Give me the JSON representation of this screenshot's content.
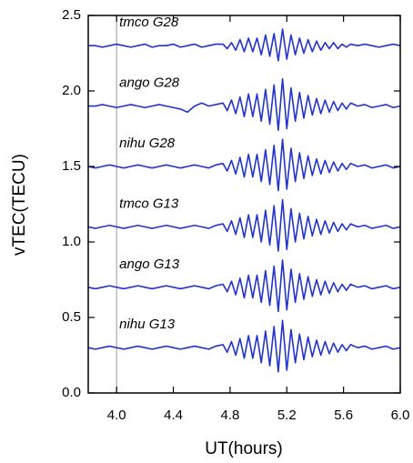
{
  "chart_data": {
    "type": "line",
    "xlabel": "UT(hours)",
    "ylabel": "vTEC(TECU)",
    "xlim": [
      3.8,
      6.0
    ],
    "ylim": [
      0,
      2.5
    ],
    "xticks": [
      {
        "value": 4.0,
        "label": "4.0"
      },
      4.4,
      4.8,
      5.2,
      5.6,
      {
        "value": 6.0,
        "label": "6.0"
      }
    ],
    "yticks": [
      {
        "value": 0,
        "label": "0.0"
      },
      0.5,
      {
        "value": 1.0,
        "label": "1.0"
      },
      1.5,
      {
        "value": 2.0,
        "label": "2.0"
      },
      2.5
    ],
    "vline": 4.0,
    "x": [
      3.8,
      3.85,
      3.9,
      3.95,
      4.0,
      4.05,
      4.1,
      4.15,
      4.2,
      4.25,
      4.3,
      4.35,
      4.4,
      4.45,
      4.5,
      4.55,
      4.6,
      4.65,
      4.7,
      4.75,
      4.78,
      4.81,
      4.84,
      4.87,
      4.9,
      4.93,
      4.96,
      4.99,
      5.02,
      5.05,
      5.08,
      5.11,
      5.14,
      5.17,
      5.2,
      5.23,
      5.26,
      5.29,
      5.32,
      5.35,
      5.38,
      5.41,
      5.44,
      5.47,
      5.5,
      5.53,
      5.56,
      5.59,
      5.62,
      5.65,
      5.7,
      5.75,
      5.8,
      5.85,
      5.9,
      5.95,
      6.0
    ],
    "series": [
      {
        "name": "tmco G28",
        "color": "#2233cc",
        "values": [
          2.3,
          2.3,
          2.29,
          2.3,
          2.31,
          2.3,
          2.29,
          2.3,
          2.31,
          2.29,
          2.3,
          2.3,
          2.31,
          2.29,
          2.3,
          2.31,
          2.29,
          2.3,
          2.31,
          2.31,
          2.28,
          2.32,
          2.27,
          2.34,
          2.26,
          2.35,
          2.26,
          2.35,
          2.24,
          2.37,
          2.23,
          2.38,
          2.2,
          2.41,
          2.21,
          2.37,
          2.24,
          2.35,
          2.25,
          2.34,
          2.26,
          2.33,
          2.27,
          2.32,
          2.28,
          2.32,
          2.28,
          2.31,
          2.29,
          2.31,
          2.3,
          2.31,
          2.3,
          2.29,
          2.3,
          2.31,
          2.3
        ]
      },
      {
        "name": "ango G28",
        "color": "#2233cc",
        "values": [
          1.9,
          1.9,
          1.91,
          1.9,
          1.89,
          1.9,
          1.91,
          1.9,
          1.89,
          1.9,
          1.91,
          1.9,
          1.89,
          1.88,
          1.86,
          1.9,
          1.92,
          1.9,
          1.91,
          1.92,
          1.87,
          1.94,
          1.85,
          1.96,
          1.83,
          1.98,
          1.83,
          1.98,
          1.8,
          2.01,
          1.78,
          2.04,
          1.74,
          2.08,
          1.75,
          2.02,
          1.8,
          1.99,
          1.82,
          1.97,
          1.84,
          1.95,
          1.85,
          1.94,
          1.86,
          1.93,
          1.87,
          1.92,
          1.88,
          1.92,
          1.9,
          1.91,
          1.89,
          1.9,
          1.91,
          1.89,
          1.9
        ]
      },
      {
        "name": "nihu G28",
        "color": "#2233cc",
        "values": [
          1.5,
          1.49,
          1.5,
          1.51,
          1.5,
          1.49,
          1.5,
          1.51,
          1.5,
          1.49,
          1.5,
          1.51,
          1.5,
          1.49,
          1.5,
          1.51,
          1.5,
          1.49,
          1.51,
          1.52,
          1.47,
          1.54,
          1.45,
          1.56,
          1.43,
          1.58,
          1.43,
          1.58,
          1.4,
          1.61,
          1.38,
          1.64,
          1.34,
          1.68,
          1.35,
          1.62,
          1.4,
          1.59,
          1.42,
          1.57,
          1.44,
          1.55,
          1.45,
          1.54,
          1.46,
          1.53,
          1.47,
          1.52,
          1.48,
          1.52,
          1.5,
          1.51,
          1.49,
          1.5,
          1.51,
          1.49,
          1.5
        ]
      },
      {
        "name": "tmco G13",
        "color": "#2233cc",
        "values": [
          1.1,
          1.09,
          1.1,
          1.11,
          1.1,
          1.09,
          1.1,
          1.11,
          1.1,
          1.09,
          1.1,
          1.11,
          1.1,
          1.09,
          1.1,
          1.11,
          1.1,
          1.09,
          1.11,
          1.12,
          1.07,
          1.14,
          1.05,
          1.16,
          1.03,
          1.18,
          1.03,
          1.18,
          1.0,
          1.21,
          0.98,
          1.24,
          0.94,
          1.28,
          0.95,
          1.22,
          1.0,
          1.19,
          1.02,
          1.17,
          1.04,
          1.15,
          1.05,
          1.14,
          1.06,
          1.13,
          1.07,
          1.12,
          1.08,
          1.12,
          1.1,
          1.11,
          1.09,
          1.1,
          1.11,
          1.09,
          1.1
        ]
      },
      {
        "name": "ango G13",
        "color": "#2233cc",
        "values": [
          0.7,
          0.69,
          0.7,
          0.71,
          0.7,
          0.69,
          0.7,
          0.71,
          0.7,
          0.69,
          0.7,
          0.71,
          0.7,
          0.69,
          0.7,
          0.71,
          0.7,
          0.69,
          0.71,
          0.72,
          0.67,
          0.74,
          0.65,
          0.76,
          0.63,
          0.78,
          0.63,
          0.78,
          0.6,
          0.81,
          0.58,
          0.84,
          0.54,
          0.88,
          0.55,
          0.82,
          0.6,
          0.79,
          0.62,
          0.77,
          0.64,
          0.75,
          0.65,
          0.74,
          0.66,
          0.73,
          0.67,
          0.72,
          0.68,
          0.72,
          0.7,
          0.71,
          0.69,
          0.7,
          0.71,
          0.69,
          0.7
        ]
      },
      {
        "name": "nihu G13",
        "color": "#2233cc",
        "values": [
          0.3,
          0.29,
          0.3,
          0.31,
          0.3,
          0.29,
          0.3,
          0.31,
          0.3,
          0.29,
          0.3,
          0.31,
          0.3,
          0.29,
          0.3,
          0.31,
          0.3,
          0.29,
          0.31,
          0.32,
          0.27,
          0.34,
          0.25,
          0.36,
          0.23,
          0.38,
          0.23,
          0.38,
          0.2,
          0.41,
          0.18,
          0.44,
          0.14,
          0.48,
          0.15,
          0.42,
          0.2,
          0.39,
          0.22,
          0.37,
          0.24,
          0.35,
          0.25,
          0.34,
          0.26,
          0.33,
          0.27,
          0.32,
          0.28,
          0.32,
          0.3,
          0.31,
          0.29,
          0.3,
          0.31,
          0.29,
          0.3
        ]
      }
    ]
  }
}
